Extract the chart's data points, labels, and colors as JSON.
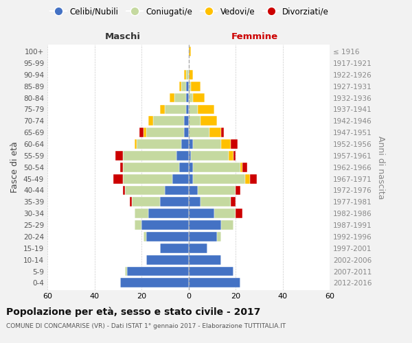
{
  "age_groups": [
    "0-4",
    "5-9",
    "10-14",
    "15-19",
    "20-24",
    "25-29",
    "30-34",
    "35-39",
    "40-44",
    "45-49",
    "50-54",
    "55-59",
    "60-64",
    "65-69",
    "70-74",
    "75-79",
    "80-84",
    "85-89",
    "90-94",
    "95-99",
    "100+"
  ],
  "birth_years": [
    "2012-2016",
    "2007-2011",
    "2002-2006",
    "1997-2001",
    "1992-1996",
    "1987-1991",
    "1982-1986",
    "1977-1981",
    "1972-1976",
    "1967-1971",
    "1962-1966",
    "1957-1961",
    "1952-1956",
    "1947-1951",
    "1942-1946",
    "1937-1941",
    "1932-1936",
    "1927-1931",
    "1922-1926",
    "1917-1921",
    "≤ 1916"
  ],
  "maschi": {
    "celibi": [
      29,
      26,
      18,
      12,
      18,
      20,
      17,
      12,
      10,
      7,
      4,
      5,
      3,
      2,
      2,
      1,
      1,
      1,
      0,
      0,
      0
    ],
    "coniugati": [
      0,
      1,
      0,
      0,
      1,
      3,
      6,
      12,
      17,
      21,
      24,
      23,
      19,
      16,
      13,
      9,
      5,
      2,
      1,
      0,
      0
    ],
    "vedovi": [
      0,
      0,
      0,
      0,
      0,
      0,
      0,
      0,
      0,
      0,
      0,
      0,
      1,
      1,
      2,
      2,
      2,
      1,
      1,
      0,
      0
    ],
    "divorziati": [
      0,
      0,
      0,
      0,
      0,
      0,
      0,
      1,
      1,
      4,
      1,
      3,
      0,
      2,
      0,
      0,
      0,
      0,
      0,
      0,
      0
    ]
  },
  "femmine": {
    "nubili": [
      22,
      19,
      14,
      8,
      12,
      14,
      11,
      5,
      4,
      2,
      2,
      1,
      2,
      0,
      0,
      0,
      0,
      0,
      0,
      0,
      0
    ],
    "coniugate": [
      0,
      0,
      0,
      0,
      2,
      5,
      9,
      13,
      16,
      22,
      20,
      16,
      12,
      9,
      5,
      4,
      2,
      1,
      0,
      0,
      0
    ],
    "vedove": [
      0,
      0,
      0,
      0,
      0,
      0,
      0,
      0,
      0,
      2,
      1,
      2,
      4,
      5,
      7,
      7,
      5,
      4,
      2,
      0,
      1
    ],
    "divorziate": [
      0,
      0,
      0,
      0,
      0,
      0,
      3,
      2,
      2,
      3,
      2,
      1,
      3,
      1,
      0,
      0,
      0,
      0,
      0,
      0,
      0
    ]
  },
  "colors": {
    "celibi_nubili": "#4472c4",
    "coniugati": "#c5d9a0",
    "vedovi": "#ffc000",
    "divorziati": "#cc0000"
  },
  "title": "Popolazione per età, sesso e stato civile - 2017",
  "subtitle": "COMUNE DI CONCAMARISE (VR) - Dati ISTAT 1° gennaio 2017 - Elaborazione TUTTITALIA.IT",
  "maschi_label": "Maschi",
  "femmine_label": "Femmine",
  "ylabel_left": "Fasce di età",
  "ylabel_right": "Anni di nascita",
  "xlim": 60,
  "background_color": "#f2f2f2",
  "plot_background": "#ffffff",
  "legend_labels": [
    "Celibi/Nubili",
    "Coniugati/e",
    "Vedovi/e",
    "Divorziati/e"
  ]
}
